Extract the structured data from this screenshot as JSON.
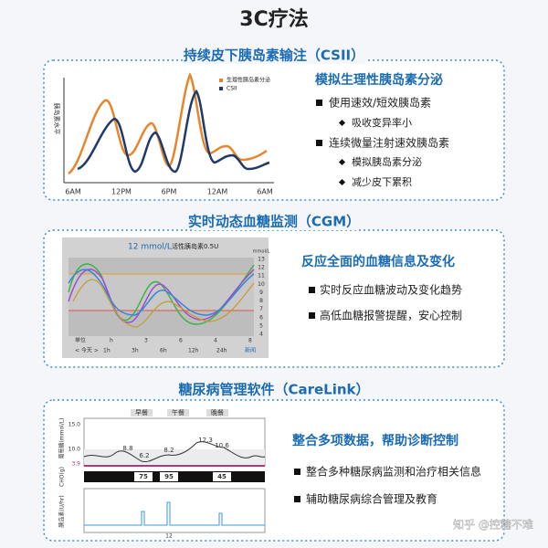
{
  "title": "3C疗法",
  "sections": [
    {
      "heading": "持续皮下胰岛素输注（CSII）",
      "chart": {
        "y_label": "胰岛素水平",
        "legend": [
          "生理性胰岛素分泌",
          "CSII"
        ],
        "x_labels": [
          "6AM",
          "12PM",
          "6PM",
          "12AM",
          "6AM"
        ]
      },
      "subtitle": "模拟生理性胰岛素分泌",
      "items": [
        {
          "text": "使用速效/短效胰岛素",
          "subitems": [
            "吸收变异率小"
          ]
        },
        {
          "text": "连续微量注射速效胰岛素",
          "subitems": [
            "模拟胰岛素分泌",
            "减少皮下累积"
          ]
        }
      ]
    },
    {
      "heading": "实时动态血糖监测（CGM）",
      "chart": {
        "header": "12 mmol/L",
        "header_note": "活性胰岛素0.5U",
        "unit": "mmol/L",
        "y_labels": [
          "13",
          "12",
          "11",
          "10",
          "9",
          "8",
          "7",
          "6",
          "5",
          "4"
        ],
        "row1": [
          "单位",
          "h",
          "3",
          "6",
          "4",
          "8"
        ],
        "row2": [
          "< 今天 >",
          "1h",
          "3h",
          "6h",
          "12h",
          "24h",
          "新闻"
        ]
      },
      "subtitle": "反应全面的血糖信息及变化",
      "items": [
        {
          "text": "实时反应血糖波动及变化趋势"
        },
        {
          "text": "高低血糖报警提醒，安心控制"
        }
      ]
    },
    {
      "heading": "糖尿病管理软件（CareLink）",
      "chart": {
        "meals": [
          "早餐",
          "午餐",
          "晚餐"
        ],
        "glucose_label": "葡萄糖(mmol/L)",
        "glucose_ticks": [
          "15.0",
          "10.0",
          "3.9"
        ],
        "glucose_values": [
          "8.8",
          "6.2",
          "8.2",
          "12.3",
          "10.6"
        ],
        "cho_label": "CHO(g)",
        "cho_values": [
          "75",
          "95",
          "45"
        ],
        "insulin_label": "胰岛素(U/hr)",
        "x_labels": [
          "12"
        ]
      },
      "subtitle": "整合多项数据，帮助诊断控制",
      "items": [
        {
          "text": "整合多种糖尿病监测和治疗相关信息"
        },
        {
          "text": "辅助糖尿病综合管理及教育"
        }
      ]
    }
  ],
  "watermark": "知乎 @控糖不难"
}
